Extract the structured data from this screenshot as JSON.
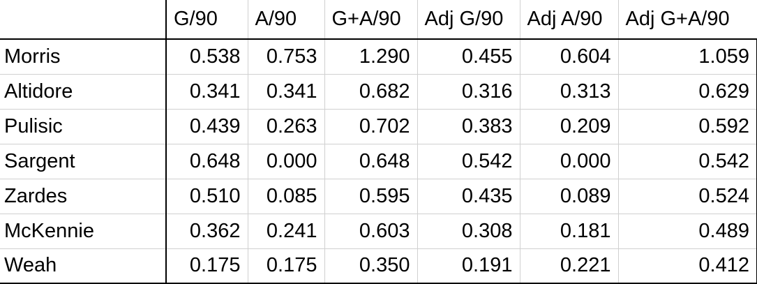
{
  "table": {
    "columns": [
      "G/90",
      "A/90",
      "G+A/90",
      "Adj G/90",
      "Adj A/90",
      "Adj G+A/90"
    ],
    "rows": [
      {
        "name": "Morris",
        "values": [
          "0.538",
          "0.753",
          "1.290",
          "0.455",
          "0.604",
          "1.059"
        ]
      },
      {
        "name": "Altidore",
        "values": [
          "0.341",
          "0.341",
          "0.682",
          "0.316",
          "0.313",
          "0.629"
        ]
      },
      {
        "name": "Pulisic",
        "values": [
          "0.439",
          "0.263",
          "0.702",
          "0.383",
          "0.209",
          "0.592"
        ]
      },
      {
        "name": "Sargent",
        "values": [
          "0.648",
          "0.000",
          "0.648",
          "0.542",
          "0.000",
          "0.542"
        ]
      },
      {
        "name": "Zardes",
        "values": [
          "0.510",
          "0.085",
          "0.595",
          "0.435",
          "0.089",
          "0.524"
        ]
      },
      {
        "name": "McKennie",
        "values": [
          "0.362",
          "0.241",
          "0.603",
          "0.308",
          "0.181",
          "0.489"
        ]
      },
      {
        "name": "Weah",
        "values": [
          "0.175",
          "0.175",
          "0.350",
          "0.191",
          "0.221",
          "0.412"
        ]
      }
    ]
  }
}
